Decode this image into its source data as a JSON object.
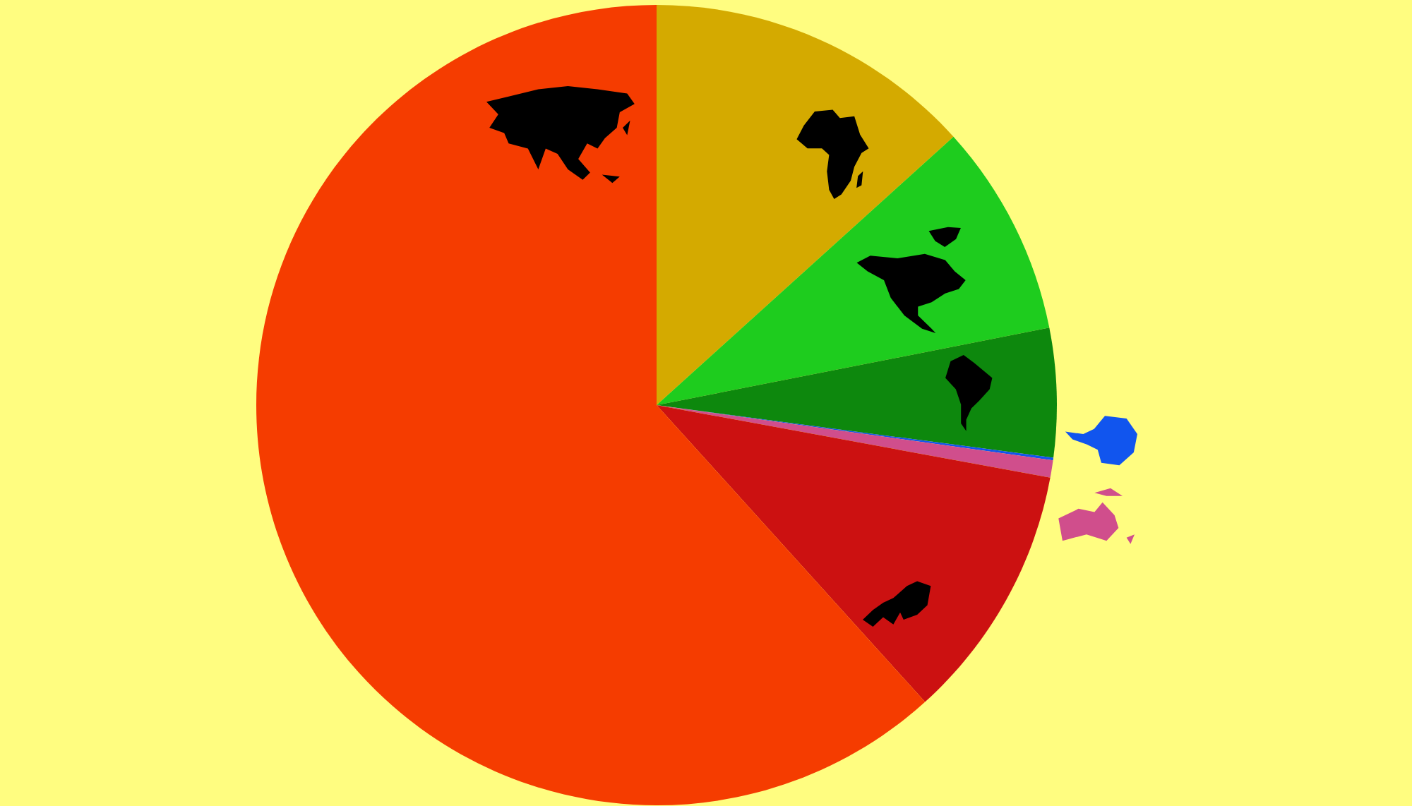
{
  "chart_data": {
    "type": "pie",
    "categories": [
      null,
      null,
      null,
      null,
      null,
      null,
      null
    ],
    "values": [
      13.3,
      8.6,
      5.2,
      0.1,
      0.7,
      10.4,
      61.7
    ],
    "colors": [
      "#d4aa00",
      "#1ecc1e",
      "#0d880d",
      "#1155ee",
      "#d04e8c",
      "#cc1111",
      "#f53c00"
    ]
  }
}
